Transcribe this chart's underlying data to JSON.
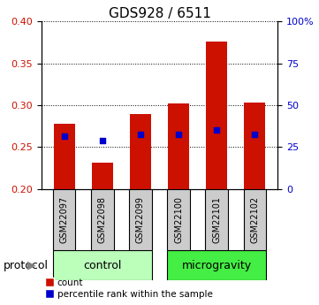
{
  "title": "GDS928 / 6511",
  "samples": [
    "GSM22097",
    "GSM22098",
    "GSM22099",
    "GSM22100",
    "GSM22101",
    "GSM22102"
  ],
  "bar_tops": [
    0.278,
    0.232,
    0.289,
    0.302,
    0.376,
    0.303
  ],
  "blue_dots": [
    0.263,
    0.258,
    0.265,
    0.265,
    0.27,
    0.265
  ],
  "bar_bottom": 0.2,
  "ylim": [
    0.2,
    0.4
  ],
  "y_ticks_left": [
    0.2,
    0.25,
    0.3,
    0.35,
    0.4
  ],
  "y_ticks_right_vals": [
    0,
    25,
    50,
    75,
    100
  ],
  "y_ticks_right_labels": [
    "0",
    "25",
    "50",
    "75",
    "100%"
  ],
  "bar_color": "#cc1100",
  "dot_color": "#0000cc",
  "control_color": "#bbffbb",
  "microgravity_color": "#44ee44",
  "sample_box_color": "#cccccc",
  "legend_count": "count",
  "legend_pct": "percentile rank within the sample",
  "protocol_label": "protocol",
  "bar_width": 0.55,
  "title_fontsize": 11,
  "tick_fontsize": 8,
  "sample_fontsize": 7
}
